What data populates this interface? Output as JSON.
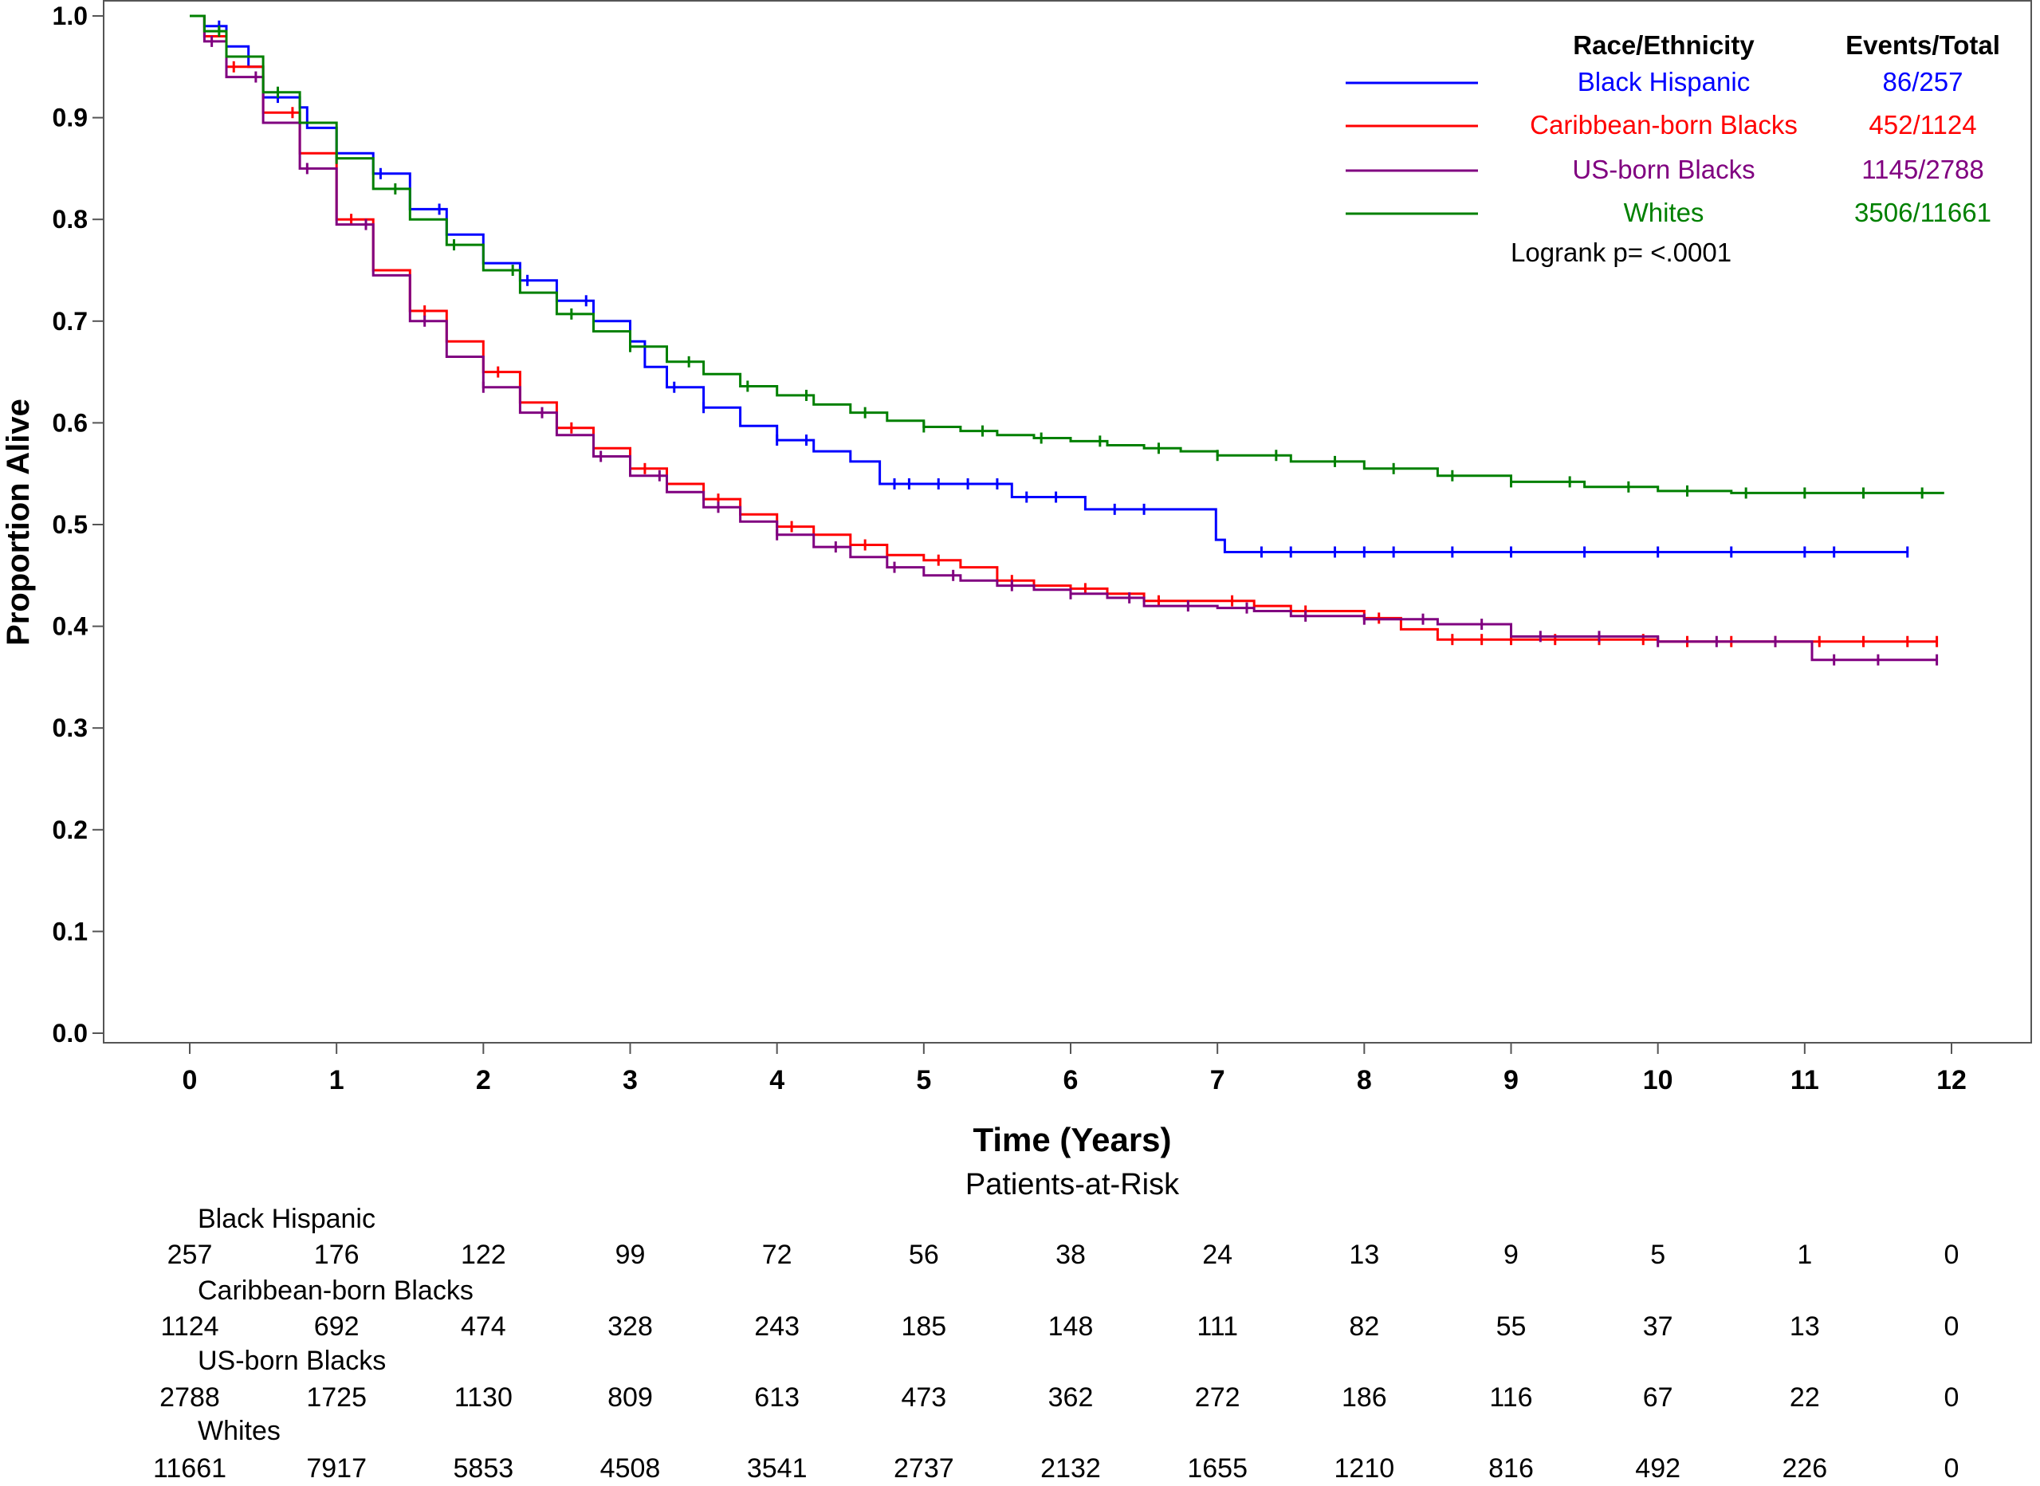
{
  "chart_data": {
    "type": "line",
    "subtype": "kaplan-meier",
    "title": "",
    "xlabel": "Time (Years)",
    "ylabel": "Proportion Alive",
    "xlim": [
      0,
      12
    ],
    "ylim": [
      0,
      1
    ],
    "xticks": [
      0,
      1,
      2,
      3,
      4,
      5,
      6,
      7,
      8,
      9,
      10,
      11,
      12
    ],
    "xtick_labels": [
      "0",
      "1",
      "2",
      "3",
      "4",
      "5",
      "6",
      "7",
      "8",
      "9",
      "10",
      "11",
      "12"
    ],
    "yticks": [
      0,
      0.1,
      0.2,
      0.3,
      0.4,
      0.5,
      0.6,
      0.7,
      0.8,
      0.9,
      1.0
    ],
    "ytick_labels": [
      "0.0",
      "0.1",
      "0.2",
      "0.3",
      "0.4",
      "0.5",
      "0.6",
      "0.7",
      "0.8",
      "0.9",
      "1.0"
    ],
    "grid": false,
    "legend": {
      "placement": "top-right",
      "header_group": "Race/Ethnicity",
      "header_events": "Events/Total",
      "footnote": "Logrank p= <.0001"
    },
    "series": [
      {
        "name": "Black Hispanic",
        "events_total": "86/257",
        "color": "#0000ff",
        "x": [
          0,
          0.1,
          0.25,
          0.4,
          0.5,
          0.75,
          0.8,
          1.0,
          1.25,
          1.5,
          1.75,
          2.0,
          2.25,
          2.5,
          2.75,
          3.0,
          3.1,
          3.25,
          3.5,
          3.75,
          4.0,
          4.25,
          4.5,
          4.7,
          5.0,
          5.5,
          5.6,
          6.0,
          6.1,
          6.5,
          6.99,
          7.05,
          7.5,
          8.0,
          9.0,
          10.0,
          11.0,
          11.7
        ],
        "y": [
          1.0,
          0.99,
          0.97,
          0.95,
          0.92,
          0.91,
          0.89,
          0.865,
          0.845,
          0.81,
          0.785,
          0.757,
          0.74,
          0.72,
          0.7,
          0.68,
          0.655,
          0.635,
          0.615,
          0.597,
          0.583,
          0.572,
          0.562,
          0.54,
          0.54,
          0.54,
          0.527,
          0.527,
          0.515,
          0.515,
          0.485,
          0.473,
          0.473,
          0.473,
          0.473,
          0.473,
          0.473,
          0.473
        ],
        "censor_x": [
          0.2,
          0.6,
          1.3,
          1.7,
          2.3,
          2.7,
          3.3,
          3.5,
          4.0,
          4.2,
          4.8,
          4.9,
          5.1,
          5.3,
          5.5,
          5.7,
          5.9,
          6.3,
          6.5,
          7.3,
          7.5,
          7.8,
          8.0,
          8.2,
          8.6,
          9.0,
          9.5,
          10.0,
          10.5,
          11.0,
          11.2,
          11.7
        ],
        "at_risk": [
          "257",
          "176",
          "122",
          "99",
          "72",
          "56",
          "38",
          "24",
          "13",
          "9",
          "5",
          "1",
          "0"
        ]
      },
      {
        "name": "Caribbean-born Blacks",
        "events_total": "452/1124",
        "color": "#ff0000",
        "x": [
          0,
          0.1,
          0.25,
          0.5,
          0.75,
          1.0,
          1.25,
          1.5,
          1.75,
          2.0,
          2.25,
          2.5,
          2.75,
          3.0,
          3.25,
          3.5,
          3.75,
          4.0,
          4.25,
          4.5,
          4.75,
          5.0,
          5.25,
          5.5,
          5.75,
          6.0,
          6.25,
          6.5,
          7.0,
          7.25,
          7.5,
          8.0,
          8.25,
          8.5,
          9.0,
          9.5,
          10.0,
          10.5,
          11.0,
          11.5,
          11.9
        ],
        "y": [
          1.0,
          0.98,
          0.95,
          0.905,
          0.865,
          0.8,
          0.75,
          0.71,
          0.68,
          0.65,
          0.62,
          0.595,
          0.575,
          0.555,
          0.54,
          0.525,
          0.51,
          0.498,
          0.49,
          0.48,
          0.47,
          0.465,
          0.458,
          0.445,
          0.44,
          0.437,
          0.432,
          0.425,
          0.425,
          0.42,
          0.415,
          0.408,
          0.397,
          0.387,
          0.387,
          0.387,
          0.385,
          0.385,
          0.385,
          0.385,
          0.385
        ],
        "censor_x": [
          0.3,
          0.7,
          1.1,
          1.6,
          2.1,
          2.6,
          3.1,
          3.6,
          4.1,
          4.6,
          5.1,
          5.6,
          6.1,
          6.6,
          7.1,
          7.6,
          8.1,
          8.6,
          8.8,
          9.0,
          9.3,
          9.6,
          9.9,
          10.2,
          10.5,
          10.8,
          11.1,
          11.4,
          11.7,
          11.9
        ],
        "at_risk": [
          "1124",
          "692",
          "474",
          "328",
          "243",
          "185",
          "148",
          "111",
          "82",
          "55",
          "37",
          "13",
          "0"
        ]
      },
      {
        "name": "US-born Blacks",
        "events_total": "1145/2788",
        "color": "#800080",
        "x": [
          0,
          0.1,
          0.25,
          0.5,
          0.75,
          1.0,
          1.25,
          1.5,
          1.75,
          2.0,
          2.25,
          2.5,
          2.75,
          3.0,
          3.25,
          3.5,
          3.75,
          4.0,
          4.25,
          4.5,
          4.75,
          5.0,
          5.25,
          5.5,
          5.75,
          6.0,
          6.25,
          6.5,
          7.0,
          7.25,
          7.5,
          8.0,
          8.5,
          9.0,
          9.5,
          10.0,
          10.5,
          11.0,
          11.05,
          11.9
        ],
        "y": [
          1.0,
          0.975,
          0.94,
          0.895,
          0.85,
          0.795,
          0.745,
          0.7,
          0.665,
          0.635,
          0.61,
          0.588,
          0.567,
          0.548,
          0.532,
          0.517,
          0.503,
          0.49,
          0.478,
          0.468,
          0.458,
          0.45,
          0.445,
          0.44,
          0.436,
          0.432,
          0.428,
          0.42,
          0.418,
          0.415,
          0.41,
          0.407,
          0.402,
          0.39,
          0.39,
          0.385,
          0.385,
          0.385,
          0.367,
          0.367
        ],
        "censor_x": [
          0.15,
          0.45,
          0.8,
          1.2,
          1.6,
          2.0,
          2.4,
          2.8,
          3.2,
          3.6,
          4.0,
          4.4,
          4.8,
          5.2,
          5.6,
          6.0,
          6.4,
          6.8,
          7.2,
          7.6,
          8.0,
          8.4,
          8.8,
          9.2,
          9.6,
          10.0,
          10.4,
          10.8,
          11.2,
          11.5,
          11.9
        ],
        "at_risk": [
          "2788",
          "1725",
          "1130",
          "809",
          "613",
          "473",
          "362",
          "272",
          "186",
          "116",
          "67",
          "22",
          "0"
        ]
      },
      {
        "name": "Whites",
        "events_total": "3506/11661",
        "color": "#008000",
        "x": [
          0,
          0.1,
          0.25,
          0.5,
          0.75,
          1.0,
          1.25,
          1.5,
          1.75,
          2.0,
          2.25,
          2.5,
          2.75,
          3.0,
          3.25,
          3.5,
          3.75,
          4.0,
          4.25,
          4.5,
          4.75,
          5.0,
          5.25,
          5.5,
          5.75,
          6.0,
          6.25,
          6.5,
          6.75,
          7.0,
          7.5,
          8.0,
          8.5,
          9.0,
          9.5,
          10.0,
          10.5,
          11.0,
          11.5,
          11.95
        ],
        "y": [
          1.0,
          0.985,
          0.96,
          0.925,
          0.895,
          0.86,
          0.83,
          0.8,
          0.775,
          0.75,
          0.728,
          0.707,
          0.69,
          0.675,
          0.66,
          0.648,
          0.636,
          0.627,
          0.618,
          0.61,
          0.602,
          0.596,
          0.592,
          0.588,
          0.585,
          0.582,
          0.578,
          0.575,
          0.572,
          0.568,
          0.562,
          0.555,
          0.548,
          0.542,
          0.537,
          0.533,
          0.531,
          0.531,
          0.531,
          0.531
        ],
        "censor_x": [
          0.2,
          0.6,
          1.0,
          1.4,
          1.8,
          2.2,
          2.6,
          3.0,
          3.4,
          3.8,
          4.2,
          4.6,
          5.0,
          5.4,
          5.8,
          6.2,
          6.6,
          7.0,
          7.4,
          7.8,
          8.2,
          8.6,
          9.0,
          9.4,
          9.8,
          10.2,
          10.6,
          11.0,
          11.4,
          11.8
        ],
        "at_risk": [
          "11661",
          "7917",
          "5853",
          "4508",
          "3541",
          "2737",
          "2132",
          "1655",
          "1210",
          "816",
          "492",
          "226",
          "0"
        ]
      }
    ],
    "at_risk_table": {
      "title": "Patients-at-Risk",
      "times": [
        0,
        1,
        2,
        3,
        4,
        5,
        6,
        7,
        8,
        9,
        10,
        11,
        12
      ]
    }
  }
}
